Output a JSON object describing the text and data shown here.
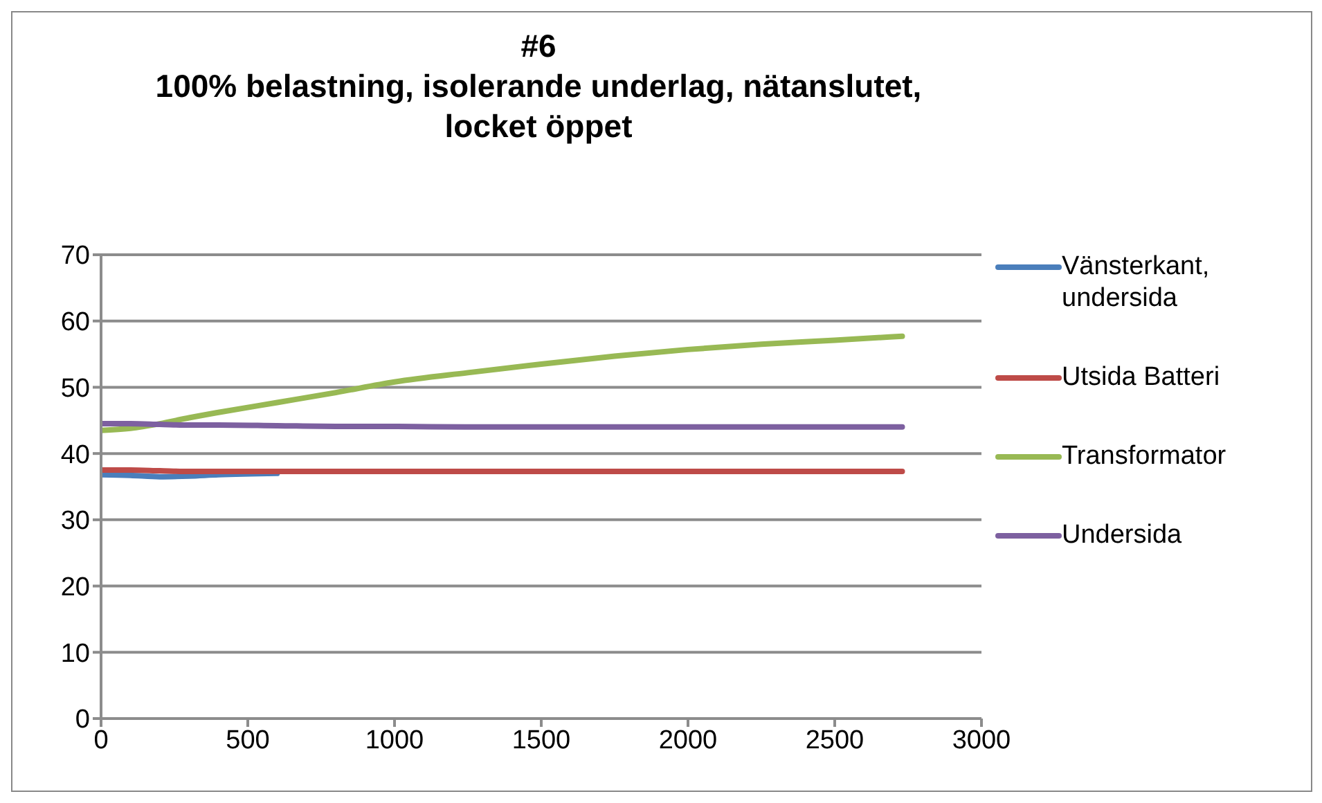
{
  "chart_data": {
    "type": "line",
    "title": "#6\n100% belastning, isolerande underlag, nätanslutet,\nlocket öppet",
    "x": [
      0,
      100,
      200,
      300,
      400,
      600,
      800,
      1000,
      1250,
      1500,
      1750,
      2000,
      2250,
      2500,
      2730
    ],
    "series": [
      {
        "name": "Vänsterkant, undersida",
        "color": "#4a7ebb",
        "values": [
          36.8,
          36.7,
          36.5,
          36.6,
          36.8,
          37.0,
          null,
          null,
          null,
          null,
          null,
          null,
          null,
          null,
          null
        ]
      },
      {
        "name": "Utsida Batteri",
        "color": "#be4b48",
        "values": [
          37.5,
          37.5,
          37.4,
          37.3,
          37.3,
          37.3,
          37.3,
          37.3,
          37.3,
          37.3,
          37.3,
          37.3,
          37.3,
          37.3,
          37.3
        ]
      },
      {
        "name": "Transformator",
        "color": "#98b954",
        "values": [
          43.5,
          43.8,
          44.5,
          45.4,
          46.2,
          47.7,
          49.2,
          50.8,
          52.2,
          53.5,
          54.7,
          55.7,
          56.5,
          57.1,
          57.7
        ]
      },
      {
        "name": "Undersida",
        "color": "#7d60a0",
        "values": [
          44.5,
          44.5,
          44.4,
          44.3,
          44.3,
          44.2,
          44.1,
          44.1,
          44.0,
          44.0,
          44.0,
          44.0,
          44.0,
          44.0,
          44.0
        ]
      }
    ],
    "xlim": [
      0,
      3000
    ],
    "xticks": [
      0,
      500,
      1000,
      1500,
      2000,
      2500,
      3000
    ],
    "ylim": [
      0,
      70
    ],
    "yticks": [
      0,
      10,
      20,
      30,
      40,
      50,
      60,
      70
    ],
    "grid": "y",
    "legend": "right",
    "marker": "none",
    "line_style": "solid"
  }
}
